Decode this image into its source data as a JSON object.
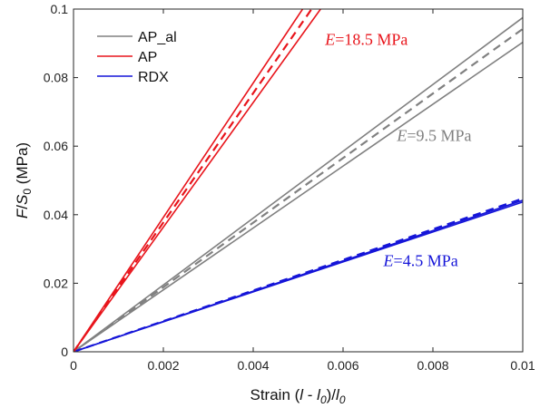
{
  "chart_data": {
    "type": "line",
    "x_range": [
      0,
      0.01
    ],
    "y_range": [
      0,
      0.1
    ],
    "x_ticks": [
      0,
      0.002,
      0.004,
      0.006,
      0.008,
      0.01
    ],
    "x_tick_labels": [
      "0",
      "0.002",
      "0.004",
      "0.006",
      "0.008",
      "0.01"
    ],
    "y_ticks": [
      0,
      0.02,
      0.04,
      0.06,
      0.08,
      0.1
    ],
    "y_tick_labels": [
      "0",
      "0.02",
      "0.04",
      "0.06",
      "0.08",
      "0.1"
    ],
    "xlabel": {
      "prefix": "Strain  (",
      "l": "l",
      "minus": " - ",
      "l0": "l",
      "sub0": "0",
      "close": ")/",
      "l0b": "l",
      "sub0b": "0"
    },
    "ylabel": {
      "f": "F",
      "slash": "/",
      "s": "S",
      "sub": "0",
      "unit": "  (MPa)"
    },
    "grid": false,
    "legend_position": "top-left",
    "legend": [
      {
        "name": "AP_al",
        "color": "#808080"
      },
      {
        "name": "AP",
        "color": "#e8141b"
      },
      {
        "name": "RDX",
        "color": "#1515d8"
      }
    ],
    "series": [
      {
        "group": "AP",
        "color": "#e8141b",
        "lines": [
          {
            "style": "solid",
            "x": [
              0,
              0.0051
            ],
            "y": [
              0,
              0.1
            ]
          },
          {
            "style": "solid",
            "x": [
              0,
              0.0055
            ],
            "y": [
              0,
              0.1
            ]
          },
          {
            "style": "dashed",
            "x": [
              0,
              0.0053
            ],
            "y": [
              0,
              0.1
            ]
          }
        ]
      },
      {
        "group": "AP_al",
        "color": "#808080",
        "lines": [
          {
            "style": "solid",
            "x": [
              0,
              0.01
            ],
            "y": [
              0,
              0.0975
            ]
          },
          {
            "style": "solid",
            "x": [
              0,
              0.01
            ],
            "y": [
              0,
              0.0903
            ]
          },
          {
            "style": "dashed",
            "x": [
              0,
              0.01
            ],
            "y": [
              0,
              0.0942
            ]
          }
        ]
      },
      {
        "group": "RDX",
        "color": "#1515d8",
        "lines": [
          {
            "style": "solid",
            "x": [
              0,
              0.01
            ],
            "y": [
              0,
              0.0437
            ]
          },
          {
            "style": "solid",
            "x": [
              0,
              0.01
            ],
            "y": [
              0,
              0.0442
            ]
          },
          {
            "style": "dashed",
            "x": [
              0,
              0.01
            ],
            "y": [
              0,
              0.0447
            ]
          }
        ]
      }
    ],
    "annotations": [
      {
        "text_e": "E",
        "text_rest": "=18.5 MPa",
        "color": "#e8141b",
        "x": 0.0056,
        "y": 0.0895
      },
      {
        "text_e": "E",
        "text_rest": "=9.5 MPa",
        "color": "#808080",
        "x": 0.0072,
        "y": 0.0615
      },
      {
        "text_e": "E",
        "text_rest": "=4.5 MPa",
        "color": "#1515d8",
        "x": 0.0069,
        "y": 0.025
      }
    ]
  }
}
